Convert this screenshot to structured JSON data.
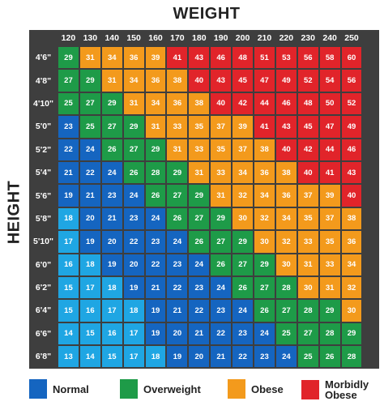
{
  "chart_data": {
    "type": "heatmap",
    "title": "",
    "xlabel": "WEIGHT",
    "ylabel": "HEIGHT",
    "weights": [
      "120",
      "130",
      "140",
      "150",
      "160",
      "170",
      "180",
      "190",
      "200",
      "210",
      "220",
      "230",
      "240",
      "250"
    ],
    "heights": [
      "4'6\"",
      "4'8\"",
      "4'10\"",
      "5'0\"",
      "5'2\"",
      "5'4\"",
      "5'6\"",
      "5'8\"",
      "5'10\"",
      "6'0\"",
      "6'2\"",
      "6'4\"",
      "6'6\"",
      "6'8\""
    ],
    "values": [
      [
        29,
        31,
        34,
        36,
        39,
        41,
        43,
        46,
        48,
        51,
        53,
        56,
        58,
        60
      ],
      [
        27,
        29,
        31,
        34,
        36,
        38,
        40,
        43,
        45,
        47,
        49,
        52,
        54,
        56
      ],
      [
        25,
        27,
        29,
        31,
        34,
        36,
        38,
        40,
        42,
        44,
        46,
        48,
        50,
        52
      ],
      [
        23,
        25,
        27,
        29,
        31,
        33,
        35,
        37,
        39,
        41,
        43,
        45,
        47,
        49
      ],
      [
        22,
        24,
        26,
        27,
        29,
        31,
        33,
        35,
        37,
        38,
        40,
        42,
        44,
        46
      ],
      [
        21,
        22,
        24,
        26,
        28,
        29,
        31,
        33,
        34,
        36,
        38,
        40,
        41,
        43
      ],
      [
        19,
        21,
        23,
        24,
        26,
        27,
        29,
        31,
        32,
        34,
        36,
        37,
        39,
        40
      ],
      [
        18,
        20,
        21,
        23,
        24,
        26,
        27,
        29,
        30,
        32,
        34,
        35,
        37,
        38
      ],
      [
        17,
        19,
        20,
        22,
        23,
        24,
        26,
        27,
        29,
        30,
        32,
        33,
        35,
        36
      ],
      [
        16,
        18,
        19,
        20,
        22,
        23,
        24,
        26,
        27,
        29,
        30,
        31,
        33,
        34
      ],
      [
        15,
        17,
        18,
        19,
        21,
        22,
        23,
        24,
        26,
        27,
        28,
        30,
        31,
        32
      ],
      [
        15,
        16,
        17,
        18,
        19,
        21,
        22,
        23,
        24,
        26,
        27,
        28,
        29,
        30
      ],
      [
        14,
        15,
        16,
        17,
        19,
        20,
        21,
        22,
        23,
        24,
        25,
        27,
        28,
        29
      ],
      [
        13,
        14,
        15,
        17,
        18,
        19,
        20,
        21,
        22,
        23,
        24,
        25,
        26,
        28
      ]
    ],
    "categories": [
      {
        "name": "Normal",
        "color": "#1565c0"
      },
      {
        "name": "Overweight",
        "color": "#1e9b48"
      },
      {
        "name": "Obese",
        "color": "#f39a1c"
      },
      {
        "name": "Morbidly Obese",
        "color": "#e1242a"
      }
    ],
    "underweight_color": "#1fa6e3",
    "legend_position": "bottom"
  },
  "legend": [
    {
      "line1": "Normal",
      "line2": ""
    },
    {
      "line1": "Overweight",
      "line2": ""
    },
    {
      "line1": "Obese",
      "line2": ""
    },
    {
      "line1": "Morbidly",
      "line2": "Obese"
    }
  ]
}
